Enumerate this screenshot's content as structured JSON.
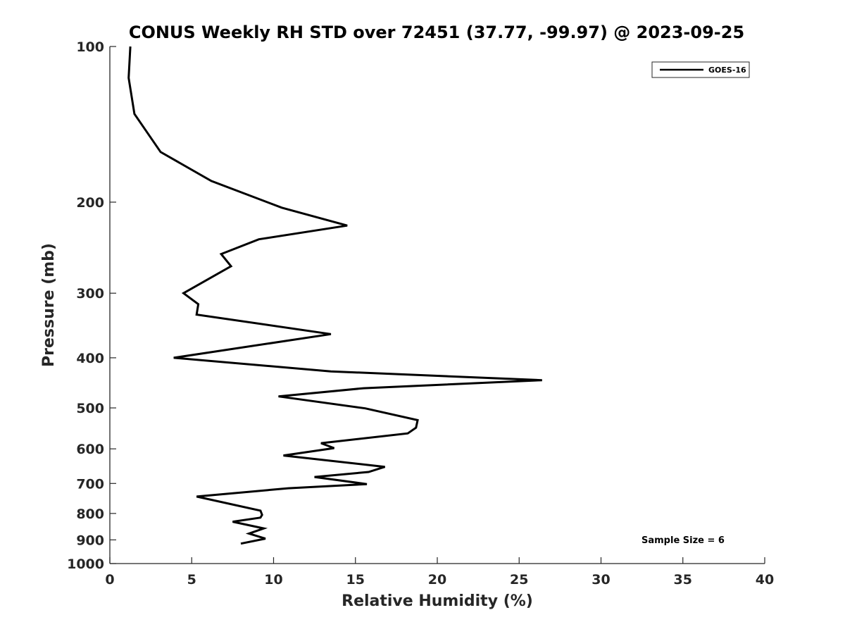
{
  "chart_data": {
    "type": "line",
    "title": "CONUS Weekly RH STD over 72451 (37.77, -99.97) @ 2023-09-25",
    "xlabel": "Relative Humidity (%)",
    "ylabel": "Pressure (mb)",
    "xlim": [
      0,
      40
    ],
    "ylim": [
      100,
      1000
    ],
    "yscale": "log",
    "y_reversed": true,
    "grid": false,
    "legend_position": "top-right",
    "xticks": [
      0,
      5,
      10,
      15,
      20,
      25,
      30,
      35,
      40
    ],
    "xtick_labels": [
      "0",
      "5",
      "10",
      "15",
      "20",
      "25",
      "30",
      "35",
      "40"
    ],
    "yticks": [
      100,
      200,
      300,
      400,
      500,
      600,
      700,
      800,
      900,
      1000
    ],
    "ytick_labels": [
      "100",
      "200",
      "300",
      "400",
      "500",
      "600",
      "700",
      "800",
      "900",
      "1000"
    ],
    "annotation": "Sample Size = 6",
    "series": [
      {
        "name": "GOES-16",
        "color": "#000000",
        "points": [
          [
            1.25,
            100
          ],
          [
            1.15,
            115
          ],
          [
            1.5,
            135
          ],
          [
            3.1,
            160
          ],
          [
            6.2,
            182
          ],
          [
            10.5,
            205
          ],
          [
            14.5,
            222
          ],
          [
            9.1,
            236
          ],
          [
            6.8,
            252
          ],
          [
            7.4,
            266
          ],
          [
            4.5,
            300
          ],
          [
            5.4,
            315
          ],
          [
            5.3,
            330
          ],
          [
            13.5,
            360
          ],
          [
            3.9,
            400
          ],
          [
            13.5,
            425
          ],
          [
            26.4,
            442
          ],
          [
            15.5,
            458
          ],
          [
            10.3,
            475
          ],
          [
            15.6,
            501
          ],
          [
            18.8,
            528
          ],
          [
            18.7,
            546
          ],
          [
            18.2,
            560
          ],
          [
            12.9,
            585
          ],
          [
            13.7,
            598
          ],
          [
            10.6,
            618
          ],
          [
            16.8,
            650
          ],
          [
            15.8,
            665
          ],
          [
            12.5,
            680
          ],
          [
            15.7,
            702
          ],
          [
            10.9,
            715
          ],
          [
            5.3,
            742
          ],
          [
            9.2,
            790
          ],
          [
            9.3,
            805
          ],
          [
            9.2,
            815
          ],
          [
            7.5,
            830
          ],
          [
            9.4,
            855
          ],
          [
            8.5,
            875
          ],
          [
            9.5,
            895
          ],
          [
            8.0,
            915
          ]
        ]
      }
    ]
  }
}
